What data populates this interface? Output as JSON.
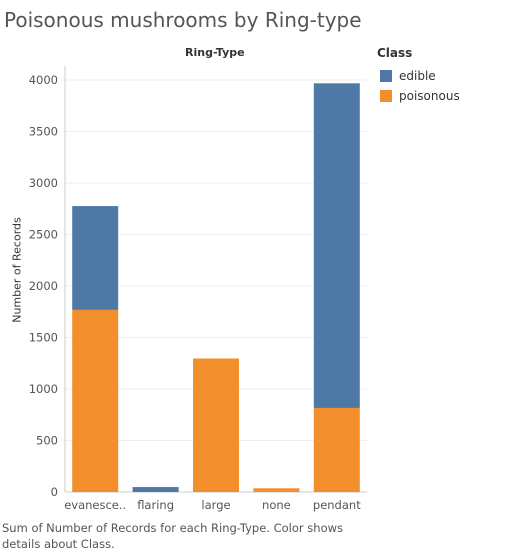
{
  "title": "Poisonous mushrooms by Ring-type",
  "colors": {
    "edible": "#4e79a7",
    "poisonous": "#f28e2b",
    "grid": "#eeeeee",
    "axis": "#cccccc"
  },
  "footer": "Sum of Number of Records for each Ring-Type.  Color shows details about Class.",
  "legend": {
    "title": "Class",
    "items": [
      {
        "label": "edible",
        "color": "#4e79a7"
      },
      {
        "label": "poisonous",
        "color": "#f28e2b"
      }
    ]
  },
  "chart_data": {
    "type": "bar",
    "stacked": true,
    "title": "Poisonous mushrooms by Ring-type",
    "xlabel": "Ring-Type",
    "ylabel": "Number of Records",
    "categories": [
      "evanesce..",
      "flaring",
      "large",
      "none",
      "pendant"
    ],
    "series": [
      {
        "name": "poisonous",
        "values": [
          1768,
          0,
          1296,
          36,
          816
        ]
      },
      {
        "name": "edible",
        "values": [
          1008,
          48,
          0,
          0,
          3152
        ]
      }
    ],
    "ylim": [
      0,
      4000
    ],
    "yticks": [
      0,
      500,
      1000,
      1500,
      2000,
      2500,
      3000,
      3500,
      4000
    ],
    "grid": true,
    "legend_position": "right"
  }
}
